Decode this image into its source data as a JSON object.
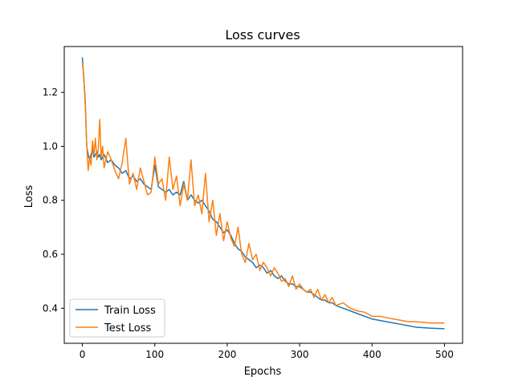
{
  "chart_data": {
    "type": "line",
    "title": "Loss curves",
    "xlabel": "Epochs",
    "ylabel": "Loss",
    "xlim": [
      -25,
      525
    ],
    "ylim": [
      0.27,
      1.37
    ],
    "xticks": [
      0,
      100,
      200,
      300,
      400,
      500
    ],
    "yticks": [
      0.4,
      0.6,
      0.8,
      1.0,
      1.2
    ],
    "grid": false,
    "legend_position": "lower-left",
    "x": [
      0,
      2,
      4,
      6,
      8,
      10,
      12,
      14,
      16,
      18,
      20,
      22,
      24,
      26,
      28,
      30,
      35,
      40,
      45,
      50,
      55,
      60,
      65,
      70,
      75,
      80,
      85,
      90,
      95,
      100,
      105,
      110,
      115,
      120,
      125,
      130,
      135,
      140,
      145,
      150,
      155,
      160,
      165,
      170,
      175,
      180,
      185,
      190,
      195,
      200,
      205,
      210,
      215,
      220,
      225,
      230,
      235,
      240,
      245,
      250,
      255,
      260,
      265,
      270,
      275,
      280,
      285,
      290,
      295,
      300,
      305,
      310,
      315,
      320,
      325,
      330,
      335,
      340,
      345,
      350,
      360,
      370,
      380,
      390,
      400,
      410,
      420,
      430,
      440,
      450,
      460,
      470,
      480,
      490,
      500
    ],
    "series": [
      {
        "name": "Train Loss",
        "color": "#1f77b4",
        "values": [
          1.33,
          1.25,
          1.17,
          1.0,
          0.97,
          0.95,
          0.97,
          0.99,
          0.96,
          0.97,
          0.98,
          0.96,
          0.97,
          0.95,
          0.96,
          0.97,
          0.94,
          0.95,
          0.93,
          0.92,
          0.9,
          0.91,
          0.88,
          0.89,
          0.87,
          0.88,
          0.86,
          0.85,
          0.84,
          0.93,
          0.85,
          0.84,
          0.83,
          0.84,
          0.82,
          0.83,
          0.82,
          0.87,
          0.8,
          0.82,
          0.8,
          0.79,
          0.8,
          0.78,
          0.76,
          0.73,
          0.72,
          0.7,
          0.68,
          0.69,
          0.67,
          0.64,
          0.62,
          0.61,
          0.59,
          0.58,
          0.57,
          0.55,
          0.56,
          0.55,
          0.53,
          0.54,
          0.52,
          0.51,
          0.52,
          0.5,
          0.49,
          0.49,
          0.48,
          0.48,
          0.47,
          0.46,
          0.46,
          0.45,
          0.44,
          0.43,
          0.43,
          0.42,
          0.42,
          0.41,
          0.4,
          0.39,
          0.38,
          0.37,
          0.36,
          0.355,
          0.35,
          0.345,
          0.34,
          0.335,
          0.33,
          0.328,
          0.326,
          0.325,
          0.324
        ]
      },
      {
        "name": "Test Loss",
        "color": "#ff7f0e",
        "values": [
          1.31,
          1.26,
          1.15,
          1.01,
          0.91,
          0.96,
          0.93,
          1.02,
          0.97,
          1.03,
          0.95,
          0.99,
          1.1,
          0.96,
          1.0,
          0.92,
          0.98,
          0.95,
          0.91,
          0.88,
          0.94,
          1.03,
          0.86,
          0.9,
          0.84,
          0.92,
          0.87,
          0.82,
          0.83,
          0.96,
          0.86,
          0.88,
          0.8,
          0.96,
          0.84,
          0.89,
          0.78,
          0.86,
          0.8,
          0.95,
          0.78,
          0.82,
          0.75,
          0.9,
          0.72,
          0.8,
          0.67,
          0.75,
          0.65,
          0.72,
          0.66,
          0.63,
          0.7,
          0.6,
          0.57,
          0.64,
          0.58,
          0.6,
          0.54,
          0.57,
          0.55,
          0.52,
          0.55,
          0.53,
          0.5,
          0.51,
          0.48,
          0.52,
          0.47,
          0.49,
          0.47,
          0.46,
          0.47,
          0.44,
          0.47,
          0.43,
          0.45,
          0.42,
          0.44,
          0.41,
          0.42,
          0.4,
          0.39,
          0.385,
          0.37,
          0.37,
          0.365,
          0.36,
          0.355,
          0.35,
          0.35,
          0.348,
          0.345,
          0.345,
          0.345
        ]
      }
    ]
  }
}
